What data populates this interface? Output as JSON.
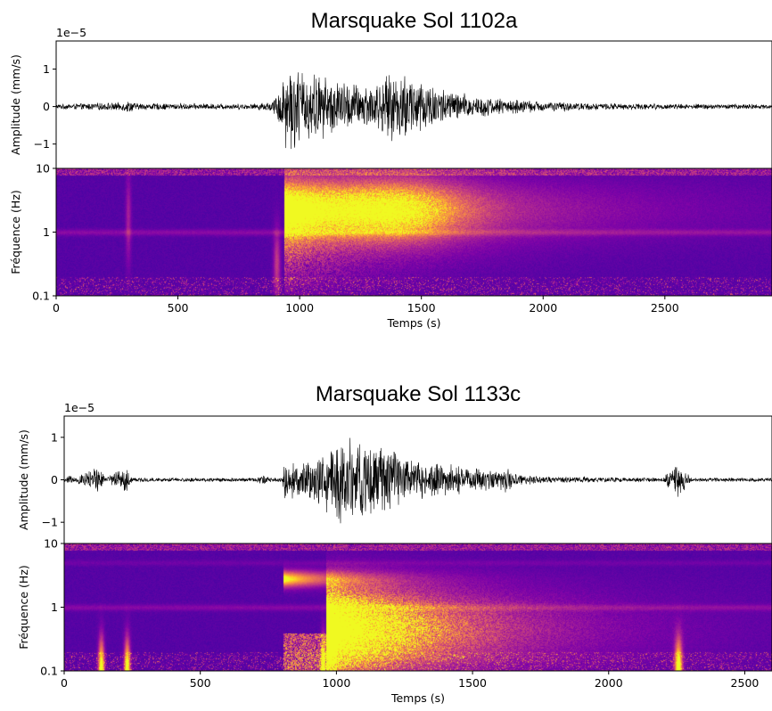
{
  "chart_data": [
    {
      "type": "line",
      "title": "Marsquake Sol 1102a",
      "waveform": {
        "ylabel": "Amplitude (mm/s)",
        "offset_text": "1e−5",
        "yticks": [
          {
            "v": 1,
            "label": "1"
          },
          {
            "v": 0,
            "label": "0"
          },
          {
            "v": -1,
            "label": "−1"
          }
        ],
        "ylim": [
          -1.65,
          1.75
        ],
        "envelope": [
          [
            0,
            0.07
          ],
          [
            150,
            0.1
          ],
          [
            270,
            0.12
          ],
          [
            300,
            0.18
          ],
          [
            330,
            0.1
          ],
          [
            500,
            0.09
          ],
          [
            800,
            0.08
          ],
          [
            880,
            0.14
          ],
          [
            900,
            0.25
          ],
          [
            930,
            0.9
          ],
          [
            950,
            1.35
          ],
          [
            1000,
            1.1
          ],
          [
            1100,
            0.9
          ],
          [
            1200,
            0.7
          ],
          [
            1300,
            0.65
          ],
          [
            1380,
            0.95
          ],
          [
            1420,
            1.0
          ],
          [
            1480,
            0.9
          ],
          [
            1600,
            0.5
          ],
          [
            1700,
            0.35
          ],
          [
            1800,
            0.25
          ],
          [
            2000,
            0.15
          ],
          [
            2200,
            0.1
          ],
          [
            2500,
            0.08
          ],
          [
            2940,
            0.07
          ]
        ]
      },
      "spectrogram": {
        "ylabel": "Fréquence (Hz)",
        "yscale": "log",
        "yticks": [
          {
            "v": 10,
            "label": "10"
          },
          {
            "v": 1,
            "label": "1"
          },
          {
            "v": 0.1,
            "label": "0.1"
          }
        ],
        "ylim": [
          0.1,
          10
        ],
        "colormap": "plasma"
      },
      "xlabel": "Temps (s)",
      "xlim": [
        0,
        2940
      ],
      "xticks": [
        0,
        500,
        1000,
        1500,
        2000,
        2500
      ]
    },
    {
      "type": "line",
      "title": "Marsquake Sol 1133c",
      "waveform": {
        "ylabel": "Amplitude (mm/s)",
        "offset_text": "1e−5",
        "yticks": [
          {
            "v": 1,
            "label": "1"
          },
          {
            "v": 0,
            "label": "0"
          },
          {
            "v": -1,
            "label": "−1"
          }
        ],
        "ylim": [
          -1.5,
          1.5
        ],
        "envelope": [
          [
            0,
            0.05
          ],
          [
            20,
            0.15
          ],
          [
            40,
            0.05
          ],
          [
            130,
            0.4
          ],
          [
            150,
            0.05
          ],
          [
            230,
            0.4
          ],
          [
            250,
            0.05
          ],
          [
            700,
            0.05
          ],
          [
            730,
            0.12
          ],
          [
            760,
            0.06
          ],
          [
            800,
            0.05
          ],
          [
            810,
            0.45
          ],
          [
            900,
            0.5
          ],
          [
            980,
            0.9
          ],
          [
            1020,
            1.2
          ],
          [
            1060,
            1.1
          ],
          [
            1150,
            0.9
          ],
          [
            1250,
            0.6
          ],
          [
            1400,
            0.4
          ],
          [
            1600,
            0.25
          ],
          [
            1620,
            0.35
          ],
          [
            1650,
            0.15
          ],
          [
            1800,
            0.08
          ],
          [
            2200,
            0.05
          ],
          [
            2250,
            0.5
          ],
          [
            2270,
            0.4
          ],
          [
            2300,
            0.05
          ],
          [
            2600,
            0.05
          ]
        ]
      },
      "spectrogram": {
        "ylabel": "Fréquence (Hz)",
        "yscale": "log",
        "yticks": [
          {
            "v": 10,
            "label": "10"
          },
          {
            "v": 1,
            "label": "1"
          },
          {
            "v": 0.1,
            "label": "0.1"
          }
        ],
        "ylim": [
          0.1,
          10
        ],
        "colormap": "plasma"
      },
      "xlabel": "Temps (s)",
      "xlim": [
        0,
        2600
      ],
      "xticks": [
        0,
        500,
        1000,
        1500,
        2000,
        2500
      ]
    }
  ]
}
